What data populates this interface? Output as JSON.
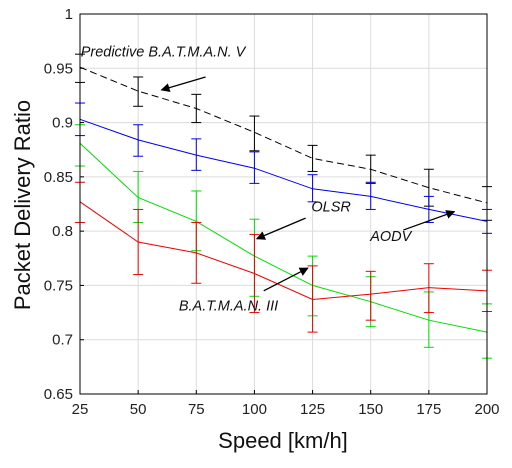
{
  "chart_data": {
    "type": "line",
    "xlabel": "Speed [km/h]",
    "ylabel": "Packet Delivery Ratio",
    "xlim": [
      25,
      200
    ],
    "ylim": [
      0.65,
      1
    ],
    "xticks": [
      "25",
      "50",
      "75",
      "100",
      "125",
      "150",
      "175",
      "200"
    ],
    "yticks": [
      "0.65",
      "0.7",
      "0.75",
      "0.8",
      "0.85",
      "0.9",
      "0.95",
      "1"
    ],
    "grid": true,
    "x": [
      25,
      50,
      75,
      100,
      125,
      150,
      175,
      200
    ],
    "series": [
      {
        "name": "Predictive B.A.T.M.A.N. V",
        "color": "#000000",
        "dash": "dashed",
        "values": [
          0.951,
          0.929,
          0.913,
          0.891,
          0.867,
          0.857,
          0.84,
          0.826
        ],
        "err_lo": [
          0.937,
          0.915,
          0.9,
          0.874,
          0.855,
          0.844,
          0.823,
          0.81
        ],
        "err_hi": [
          0.963,
          0.942,
          0.926,
          0.906,
          0.879,
          0.87,
          0.857,
          0.841
        ]
      },
      {
        "name": "AODV",
        "color": "#0000ee",
        "dash": "solid",
        "values": [
          0.903,
          0.884,
          0.87,
          0.858,
          0.839,
          0.832,
          0.82,
          0.809
        ],
        "err_lo": [
          0.888,
          0.869,
          0.856,
          0.844,
          0.827,
          0.82,
          0.808,
          0.798
        ],
        "err_hi": [
          0.918,
          0.898,
          0.885,
          0.873,
          0.852,
          0.845,
          0.832,
          0.82
        ]
      },
      {
        "name": "OLSR",
        "color": "#00dd00",
        "dash": "solid",
        "values": [
          0.881,
          0.831,
          0.809,
          0.777,
          0.75,
          0.735,
          0.718,
          0.707
        ],
        "err_lo": [
          0.86,
          0.808,
          0.782,
          0.74,
          0.722,
          0.712,
          0.693,
          0.683
        ],
        "err_hi": [
          0.898,
          0.855,
          0.837,
          0.811,
          0.777,
          0.758,
          0.744,
          0.733
        ]
      },
      {
        "name": "B.A.T.M.A.N. III",
        "color": "#ee0000",
        "dash": "solid",
        "values": [
          0.827,
          0.79,
          0.78,
          0.761,
          0.737,
          0.742,
          0.748,
          0.745
        ],
        "err_lo": [
          0.808,
          0.76,
          0.752,
          0.725,
          0.707,
          0.718,
          0.725,
          0.726
        ],
        "err_hi": [
          0.845,
          0.82,
          0.808,
          0.797,
          0.768,
          0.763,
          0.77,
          0.764
        ]
      }
    ],
    "annotations": [
      {
        "text": "Predictive B.A.T.M.A.N. V",
        "label_at": [
          25.3,
          0.961
        ],
        "arrow_from": [
          79,
          0.942
        ],
        "arrow_to": [
          60,
          0.93
        ]
      },
      {
        "text": "OLSR",
        "label_at": [
          124.5,
          0.818
        ],
        "arrow_from": [
          122,
          0.812
        ],
        "arrow_to": [
          101,
          0.793
        ]
      },
      {
        "text": "AODV",
        "label_at": [
          149.8,
          0.791
        ],
        "arrow_from": [
          164,
          0.801
        ],
        "arrow_to": [
          186,
          0.818
        ]
      },
      {
        "text": "B.A.T.M.A.N. III",
        "label_at": [
          67.5,
          0.727
        ],
        "arrow_from": [
          104,
          0.745
        ],
        "arrow_to": [
          123,
          0.766
        ]
      }
    ]
  }
}
